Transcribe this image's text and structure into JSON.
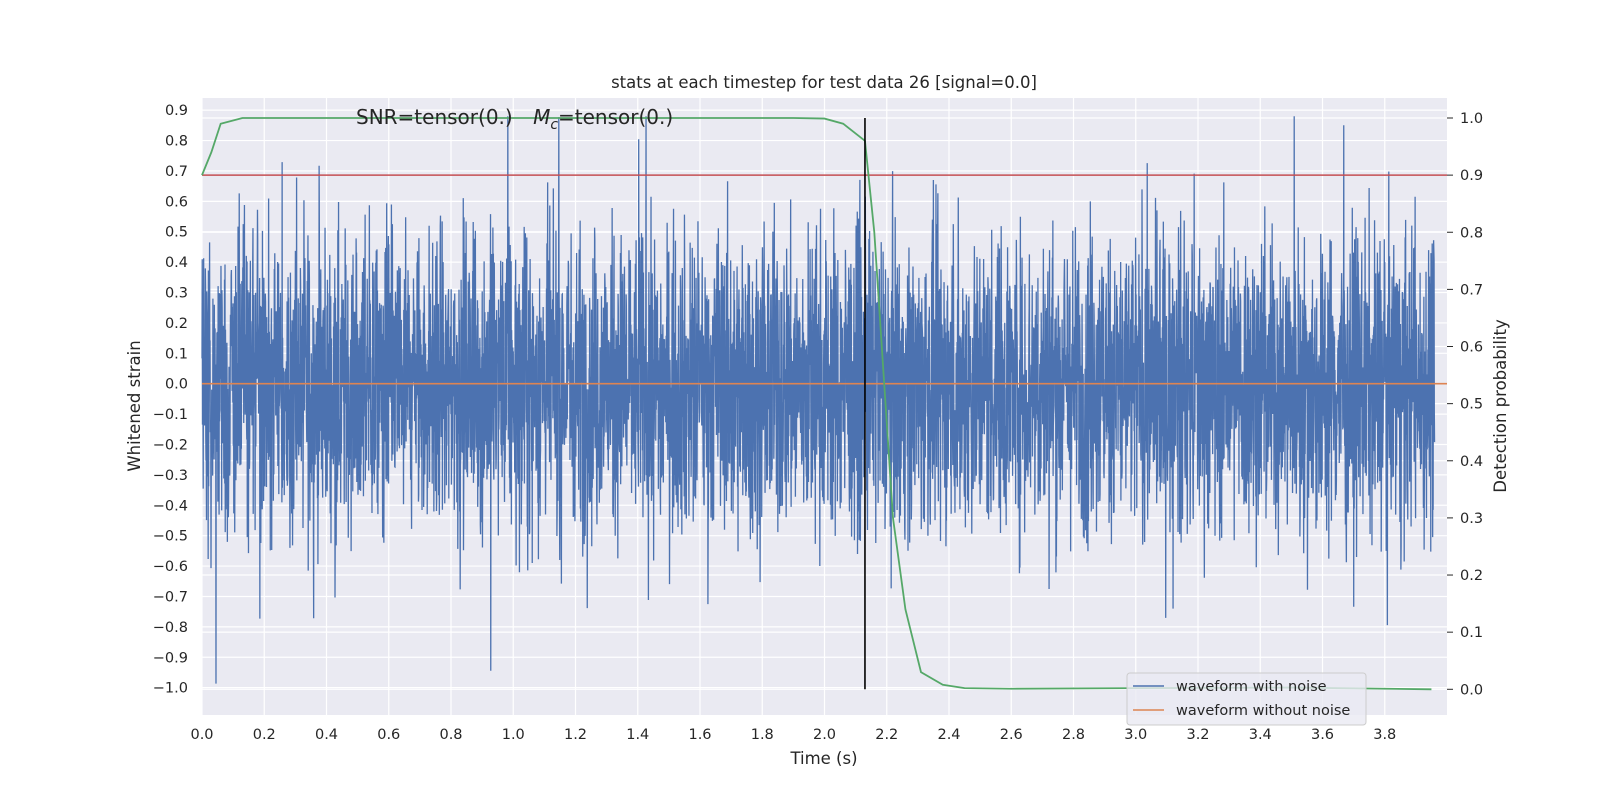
{
  "chart_data": {
    "type": "line",
    "title": "stats at each timestep for test data 26 [signal=0.0]",
    "xlabel": "Time (s)",
    "ylabel": "Whitened strain",
    "ylabel_right": "Detection probability",
    "xlim": [
      0.0,
      4.0
    ],
    "ylim": [
      -1.09,
      0.94
    ],
    "ylim_right": [
      -0.045,
      1.035
    ],
    "grid": true,
    "legend_position": "lower-right",
    "x_ticks": [
      "0.0",
      "0.2",
      "0.4",
      "0.6",
      "0.8",
      "1.0",
      "1.2",
      "1.4",
      "1.6",
      "1.8",
      "2.0",
      "2.2",
      "2.4",
      "2.6",
      "2.8",
      "3.0",
      "3.2",
      "3.4",
      "3.6",
      "3.8"
    ],
    "y_ticks": [
      "0.9",
      "0.8",
      "0.7",
      "0.6",
      "0.5",
      "0.4",
      "0.3",
      "0.2",
      "0.1",
      "0.0",
      "−0.1",
      "−0.2",
      "−0.3",
      "−0.4",
      "−0.5",
      "−0.6",
      "−0.7",
      "−0.8",
      "−0.9",
      "−1.0"
    ],
    "y_ticks_right": [
      "1.0",
      "0.9",
      "0.8",
      "0.7",
      "0.6",
      "0.5",
      "0.4",
      "0.3",
      "0.2",
      "0.1",
      "0.0"
    ],
    "annotation": {
      "snr": "SNR=tensor(0.)",
      "mc_symbol": "M",
      "mc_sub": "c",
      "mc_value": "=tensor(0.)"
    },
    "threshold_probability": 0.9,
    "vertical_marker_time": 2.13,
    "series": [
      {
        "name": "waveform with noise",
        "axis": "left",
        "color": "#4c72b0",
        "description_style": "dense noise",
        "amplitude_envelope": {
          "min": -1.0,
          "max": 0.88,
          "typical_range": [
            -0.5,
            0.5
          ]
        }
      },
      {
        "name": "waveform without noise",
        "axis": "left",
        "color": "#dd8452",
        "x": [
          0.0,
          4.0
        ],
        "y": [
          0.0,
          0.0
        ]
      },
      {
        "name": "",
        "axis": "right",
        "color": "#55a868",
        "x": [
          0.0,
          0.03,
          0.06,
          0.13,
          0.5,
          1.0,
          1.5,
          1.9,
          2.0,
          2.06,
          2.13,
          2.16,
          2.19,
          2.22,
          2.26,
          2.31,
          2.38,
          2.45,
          2.6,
          3.0,
          3.5,
          3.95
        ],
        "y": [
          0.9,
          0.94,
          0.99,
          1.0,
          1.0,
          1.0,
          1.0,
          1.0,
          0.999,
          0.99,
          0.96,
          0.8,
          0.55,
          0.3,
          0.14,
          0.03,
          0.008,
          0.002,
          0.001,
          0.002,
          0.003,
          0.0
        ]
      },
      {
        "name": "",
        "axis": "right",
        "color": "#c44e52",
        "x": [
          0.0,
          4.0
        ],
        "y": [
          0.9,
          0.9
        ]
      }
    ]
  },
  "colors": {
    "plot_background": "#eaeaf2",
    "grid": "#ffffff",
    "noisy": "#4c72b0",
    "clean": "#dd8452",
    "probability": "#55a868",
    "threshold": "#c44e52",
    "marker": "#000000"
  }
}
